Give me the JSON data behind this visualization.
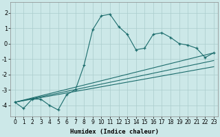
{
  "xlabel": "Humidex (Indice chaleur)",
  "ylabel": "",
  "xlim": [
    -0.5,
    23.5
  ],
  "ylim": [
    -4.7,
    2.7
  ],
  "yticks": [
    -4,
    -3,
    -2,
    -1,
    0,
    1,
    2
  ],
  "xticks": [
    0,
    1,
    2,
    3,
    4,
    5,
    6,
    7,
    8,
    9,
    10,
    11,
    12,
    13,
    14,
    15,
    16,
    17,
    18,
    19,
    20,
    21,
    22,
    23
  ],
  "bg_color": "#cce8e8",
  "line_color": "#1a6b6b",
  "line1_x": [
    0,
    1,
    2,
    3,
    4,
    5,
    6,
    7,
    8,
    9,
    10,
    11,
    12,
    13,
    14,
    15,
    16,
    17,
    18,
    19,
    20,
    21,
    22,
    23
  ],
  "line1_y": [
    -3.8,
    -4.2,
    -3.6,
    -3.6,
    -4.0,
    -4.3,
    -3.3,
    -3.0,
    -1.4,
    0.9,
    1.8,
    1.9,
    1.1,
    0.6,
    -0.4,
    -0.3,
    0.6,
    0.7,
    0.4,
    0.0,
    -0.1,
    -0.3,
    -0.9,
    -0.6
  ],
  "line2_x": [
    0,
    23
  ],
  "line2_y": [
    -3.8,
    -0.6
  ],
  "line3_x": [
    0,
    23
  ],
  "line3_y": [
    -3.8,
    -1.1
  ],
  "line4_x": [
    0,
    23
  ],
  "line4_y": [
    -3.8,
    -1.5
  ]
}
